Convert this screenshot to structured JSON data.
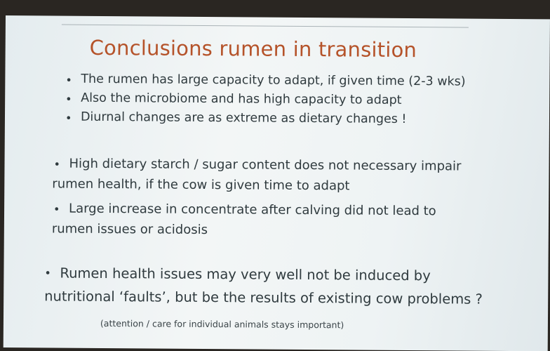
{
  "slide": {
    "title": "Conclusions rumen in transition",
    "groups": [
      {
        "items": [
          {
            "lines": [
              "The rumen has large capacity to adapt, if given time (2-3 wks)"
            ]
          },
          {
            "lines": [
              "Also the microbiome and has high capacity to adapt"
            ]
          },
          {
            "lines": [
              "Diurnal changes are as extreme as dietary changes !"
            ]
          }
        ]
      },
      {
        "items": [
          {
            "lines": [
              "High dietary starch / sugar content does not necessary impair",
              "rumen health, if the cow is given time to adapt"
            ]
          },
          {
            "lines": [
              "Large increase in concentrate after calving did not lead to",
              "rumen issues or acidosis"
            ]
          }
        ]
      },
      {
        "items": [
          {
            "lines": [
              "Rumen health issues may very well not be induced by",
              "nutritional ‘faults’, but be the results of existing cow problems ?"
            ]
          }
        ]
      }
    ],
    "note": "(attention / care for individual animals stays important)"
  }
}
